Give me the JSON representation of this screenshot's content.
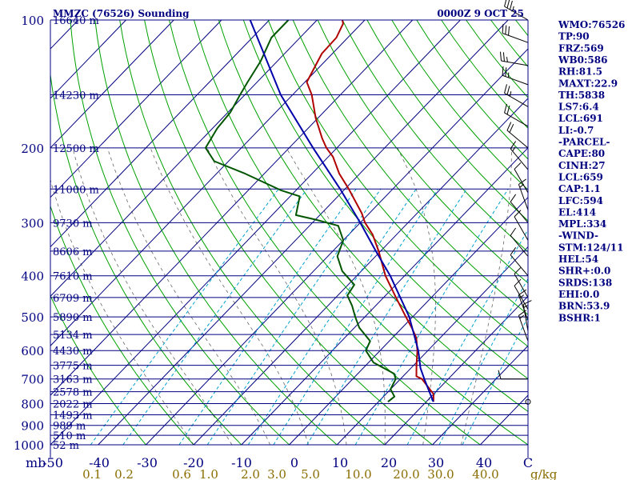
{
  "header": {
    "title": "MMZC (76526) Sounding",
    "datetime": "0000Z  9 OCT 25"
  },
  "chart_data": {
    "type": "line",
    "subtype": "skew-t log-p",
    "title": "MMZC (76526) Sounding",
    "ylabel": "mb",
    "xlabel": "",
    "ylim": [
      1000,
      100
    ],
    "xlim": [
      -50,
      50
    ],
    "pressure_levels": [
      100,
      200,
      300,
      400,
      500,
      600,
      700,
      800,
      900,
      1000
    ],
    "isobars": [
      100,
      150,
      200,
      250,
      300,
      350,
      400,
      450,
      500,
      550,
      600,
      650,
      700,
      750,
      800,
      850,
      900,
      950,
      1000
    ],
    "temperature_ticks": [
      "-50",
      "-40",
      "-30",
      "-20",
      "-10",
      "0",
      "10",
      "20",
      "30",
      "40",
      "C"
    ],
    "mixing_ratio_label_values": [
      0.1,
      0.2,
      0.6,
      1.0,
      2.0,
      3.0,
      5.0,
      10.0,
      20.0,
      30.0,
      40.0
    ],
    "mixing_ratio_labels": [
      "0.1",
      "0.2",
      "0.6",
      "1.0",
      "2.0",
      "3.0",
      "5.0",
      "10.0",
      "20.0",
      "30.0",
      "40.0",
      "g/kg"
    ],
    "height_labels": [
      {
        "p": 100,
        "text": "16640 m"
      },
      {
        "p": 150,
        "text": "14230 m"
      },
      {
        "p": 200,
        "text": "12500 m"
      },
      {
        "p": 250,
        "text": "11000 m"
      },
      {
        "p": 300,
        "text": "9730 m"
      },
      {
        "p": 350,
        "text": "8606 m"
      },
      {
        "p": 400,
        "text": "7610 m"
      },
      {
        "p": 450,
        "text": "6709 m"
      },
      {
        "p": 500,
        "text": "5890 m"
      },
      {
        "p": 550,
        "text": "5134 m"
      },
      {
        "p": 600,
        "text": "4430 m"
      },
      {
        "p": 650,
        "text": "3775 m"
      },
      {
        "p": 700,
        "text": "3163 m"
      },
      {
        "p": 750,
        "text": "2578 m"
      },
      {
        "p": 800,
        "text": "2022 m"
      },
      {
        "p": 850,
        "text": "1493 m"
      },
      {
        "p": 900,
        "text": "989 m"
      },
      {
        "p": 950,
        "text": "510 m"
      },
      {
        "p": 1000,
        "text": "52 m"
      }
    ],
    "series": [
      {
        "name": "Temperature",
        "color": "#b00000",
        "points": [
          {
            "p": 792,
            "t": 21.5
          },
          {
            "p": 760,
            "t": 20.0
          },
          {
            "p": 700,
            "t": 14.5
          },
          {
            "p": 690,
            "t": 12.8
          },
          {
            "p": 650,
            "t": 10.6
          },
          {
            "p": 600,
            "t": 7.8
          },
          {
            "p": 560,
            "t": 5.0
          },
          {
            "p": 530,
            "t": 2.0
          },
          {
            "p": 500,
            "t": -1.4
          },
          {
            "p": 450,
            "t": -7.4
          },
          {
            "p": 400,
            "t": -14.0
          },
          {
            "p": 350,
            "t": -20.4
          },
          {
            "p": 320,
            "t": -25.0
          },
          {
            "p": 300,
            "t": -29.0
          },
          {
            "p": 285,
            "t": -31.6
          },
          {
            "p": 250,
            "t": -39.2
          },
          {
            "p": 230,
            "t": -44.3
          },
          {
            "p": 210,
            "t": -49.0
          },
          {
            "p": 200,
            "t": -52.2
          },
          {
            "p": 190,
            "t": -55.0
          },
          {
            "p": 170,
            "t": -60.5
          },
          {
            "p": 150,
            "t": -66.0
          },
          {
            "p": 140,
            "t": -69.6
          },
          {
            "p": 120,
            "t": -72.2
          },
          {
            "p": 110,
            "t": -72.4
          },
          {
            "p": 102,
            "t": -73.8
          },
          {
            "p": 100,
            "t": -74.7
          }
        ]
      },
      {
        "name": "Dewpoint",
        "color": "#005500",
        "points": [
          {
            "p": 792,
            "t": 12.0
          },
          {
            "p": 770,
            "t": 12.3
          },
          {
            "p": 740,
            "t": 10.0
          },
          {
            "p": 700,
            "t": 9.0
          },
          {
            "p": 680,
            "t": 7.6
          },
          {
            "p": 640,
            "t": 1.0
          },
          {
            "p": 600,
            "t": -3.0
          },
          {
            "p": 570,
            "t": -4.0
          },
          {
            "p": 530,
            "t": -9.0
          },
          {
            "p": 500,
            "t": -12.0
          },
          {
            "p": 470,
            "t": -15.0
          },
          {
            "p": 445,
            "t": -18.0
          },
          {
            "p": 420,
            "t": -18.7
          },
          {
            "p": 390,
            "t": -24.0
          },
          {
            "p": 360,
            "t": -28.0
          },
          {
            "p": 330,
            "t": -30.0
          },
          {
            "p": 305,
            "t": -34.0
          },
          {
            "p": 295,
            "t": -40.0
          },
          {
            "p": 288,
            "t": -45.0
          },
          {
            "p": 260,
            "t": -48.0
          },
          {
            "p": 252,
            "t": -53.0
          },
          {
            "p": 230,
            "t": -64.0
          },
          {
            "p": 215,
            "t": -73.0
          },
          {
            "p": 200,
            "t": -77.5
          },
          {
            "p": 180,
            "t": -79.0
          },
          {
            "p": 165,
            "t": -79.5
          },
          {
            "p": 150,
            "t": -81.0
          },
          {
            "p": 140,
            "t": -82.0
          },
          {
            "p": 125,
            "t": -83.5
          },
          {
            "p": 110,
            "t": -86.0
          },
          {
            "p": 100,
            "t": -86.0
          }
        ]
      },
      {
        "name": "Parcel path",
        "color": "#0000aa",
        "points": [
          {
            "p": 792,
            "t": 21.5
          },
          {
            "p": 700,
            "t": 15.0
          },
          {
            "p": 660,
            "t": 12.0
          },
          {
            "p": 600,
            "t": 8.0
          },
          {
            "p": 500,
            "t": -0.7
          },
          {
            "p": 450,
            "t": -6.5
          },
          {
            "p": 400,
            "t": -13.0
          },
          {
            "p": 350,
            "t": -21.0
          },
          {
            "p": 300,
            "t": -30.0
          },
          {
            "p": 250,
            "t": -41.0
          },
          {
            "p": 200,
            "t": -55.0
          },
          {
            "p": 150,
            "t": -72.5
          },
          {
            "p": 100,
            "t": -94.0
          }
        ]
      }
    ],
    "wind_barbs": [
      {
        "p": 100,
        "dir": 300,
        "spd": 35
      },
      {
        "p": 113,
        "dir": 290,
        "spd": 30
      },
      {
        "p": 128,
        "dir": 280,
        "spd": 25
      },
      {
        "p": 142,
        "dir": 290,
        "spd": 25
      },
      {
        "p": 160,
        "dir": 300,
        "spd": 25
      },
      {
        "p": 178,
        "dir": 300,
        "spd": 20
      },
      {
        "p": 200,
        "dir": 310,
        "spd": 20
      },
      {
        "p": 225,
        "dir": 320,
        "spd": 15
      },
      {
        "p": 255,
        "dir": 330,
        "spd": 10
      },
      {
        "p": 280,
        "dir": 340,
        "spd": 15
      },
      {
        "p": 300,
        "dir": 320,
        "spd": 10
      },
      {
        "p": 330,
        "dir": 330,
        "spd": 10
      },
      {
        "p": 360,
        "dir": 320,
        "spd": 10
      },
      {
        "p": 400,
        "dir": 320,
        "spd": 10
      },
      {
        "p": 450,
        "dir": 330,
        "spd": 10
      },
      {
        "p": 480,
        "dir": 330,
        "spd": 10
      },
      {
        "p": 510,
        "dir": 340,
        "spd": 15
      },
      {
        "p": 540,
        "dir": 350,
        "spd": 15
      },
      {
        "p": 570,
        "dir": 340,
        "spd": 15
      },
      {
        "p": 700,
        "dir": 270,
        "spd": 10
      },
      {
        "p": 792,
        "dir": 0,
        "spd": 0
      }
    ]
  },
  "indices": [
    "WMO:76526",
    "TP:90",
    "FRZ:569",
    "WB0:586",
    "RH:81.5",
    "MAXT:22.9",
    "TH:5838",
    "LS7:6.4",
    "LCL:691",
    "LI:-0.7",
    "-PARCEL-",
    "CAPE:80",
    "CINH:27",
    "LCL:659",
    "CAP:1.1",
    "LFC:594",
    "EL:414",
    "MPL:334",
    "-WIND-",
    "STM:124/11",
    "HEL:54",
    "SHR+:0.0",
    "SRDS:138",
    "EHI:0.0",
    "BRN:53.9",
    "BSHR:1"
  ],
  "colors": {
    "isobar": "#000080",
    "isotherm": "#000080",
    "dry_adiabat": "#00a000",
    "moist_adiabat": "#000000",
    "mixing_ratio": "#00a0d0",
    "mixing_ratio_label": "#8a6d00",
    "temperature": "#b00000",
    "dewpoint": "#005500",
    "parcel": "#0000aa"
  }
}
